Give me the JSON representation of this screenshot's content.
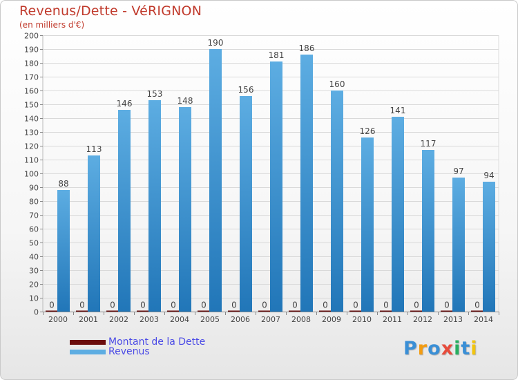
{
  "header": {
    "title": "Revenus/Dette - VéRIGNON",
    "subtitle": "(en milliers d'€)"
  },
  "legend": {
    "debt_label": "Montant de la Dette",
    "revenue_label": "Revenus"
  },
  "logo": {
    "text": [
      "P",
      "r",
      "o",
      "x",
      "i",
      "t",
      "i"
    ]
  },
  "colors": {
    "debt": "#6b0d0d",
    "revenue_top": "#5dade2",
    "revenue_bottom": "#2176b8",
    "title": "#c0392b",
    "logo": [
      "#3a8fd6",
      "#f39c12",
      "#3a8fd6",
      "#e74c3c",
      "#27ae60",
      "#3a8fd6",
      "#f1c40f"
    ]
  },
  "chart_data": {
    "type": "bar",
    "title": "Revenus/Dette - VéRIGNON",
    "ylabel": "(en milliers d'€)",
    "xlabel": "",
    "ylim": [
      0,
      200
    ],
    "ytick_step": 10,
    "grid": true,
    "categories": [
      "2000",
      "2001",
      "2002",
      "2003",
      "2004",
      "2005",
      "2006",
      "2007",
      "2008",
      "2009",
      "2010",
      "2011",
      "2012",
      "2013",
      "2014"
    ],
    "series": [
      {
        "name": "Montant de la Dette",
        "values": [
          0,
          0,
          0,
          0,
          0,
          0,
          0,
          0,
          0,
          0,
          0,
          0,
          0,
          0,
          0
        ]
      },
      {
        "name": "Revenus",
        "values": [
          88,
          113,
          146,
          153,
          148,
          190,
          156,
          181,
          186,
          160,
          126,
          141,
          117,
          97,
          94
        ]
      }
    ]
  }
}
